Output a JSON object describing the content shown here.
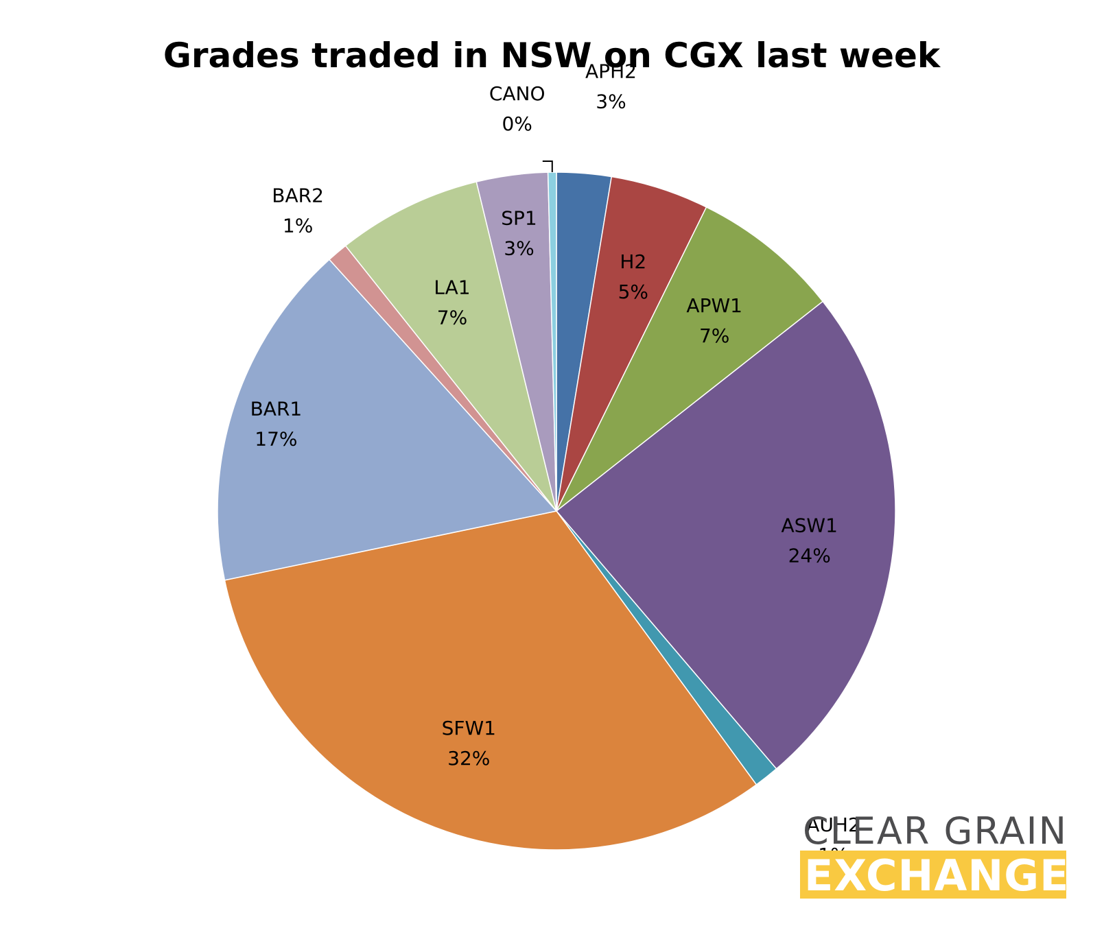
{
  "chart_data": {
    "type": "pie",
    "title": "Grades traded in NSW on CGX last week",
    "slices": [
      {
        "name": "APH2",
        "value": 2.6,
        "label": "3%",
        "color": "#4572a7"
      },
      {
        "name": "H2",
        "value": 4.7,
        "label": "5%",
        "color": "#aa4643"
      },
      {
        "name": "APW1",
        "value": 7.1,
        "label": "7%",
        "color": "#89a54e"
      },
      {
        "name": "ASW1",
        "value": 24.4,
        "label": "24%",
        "color": "#71588f"
      },
      {
        "name": "AUH2",
        "value": 1.2,
        "label": "1%",
        "color": "#4198af"
      },
      {
        "name": "SFW1",
        "value": 31.8,
        "label": "32%",
        "color": "#db843d"
      },
      {
        "name": "BAR1",
        "value": 16.6,
        "label": "17%",
        "color": "#93a9cf"
      },
      {
        "name": "BAR2",
        "value": 1.0,
        "label": "1%",
        "color": "#d19392"
      },
      {
        "name": "LA1",
        "value": 6.9,
        "label": "7%",
        "color": "#b9cd96"
      },
      {
        "name": "SP1",
        "value": 3.4,
        "label": "3%",
        "color": "#a99bbd"
      },
      {
        "name": "CANO",
        "value": 0.4,
        "label": "0%",
        "color": "#8ccfe0"
      }
    ]
  },
  "logo": {
    "line1": "CLEAR GRAIN",
    "line2": "EXCHANGE",
    "accent_color": "#f9c941",
    "text_color": "#4d4d4f"
  }
}
